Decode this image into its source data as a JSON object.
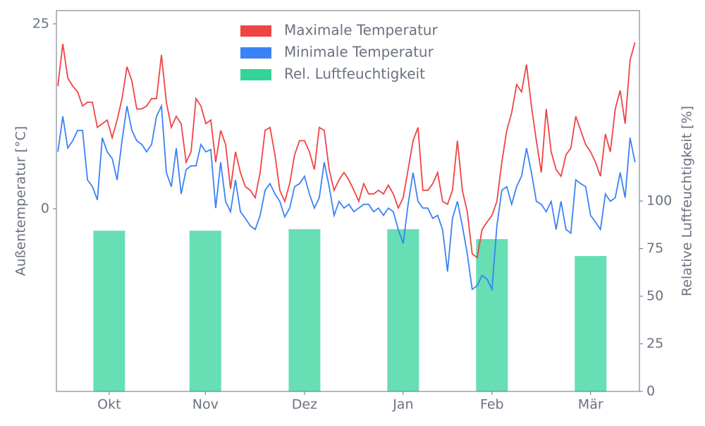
{
  "chart_data": {
    "type": "line-bar",
    "ylabel": "Außentemperatur [°C]",
    "y2label": "Relative Luftfeuchtigkeit [%]",
    "xlim": [
      -0.3,
      117.9
    ],
    "xticks": [
      {
        "value": 10.4,
        "label": "Okt"
      },
      {
        "value": 29.9,
        "label": "Nov"
      },
      {
        "value": 50,
        "label": "Dez"
      },
      {
        "value": 70,
        "label": "Jan"
      },
      {
        "value": 88,
        "label": "Feb"
      },
      {
        "value": 108,
        "label": "Mär"
      }
    ],
    "ylim": [
      -24.7,
      26.8
    ],
    "yticks": [
      0,
      25
    ],
    "y2lim": [
      0,
      200
    ],
    "y2ticks": [
      0,
      25,
      50,
      75,
      100
    ],
    "grid": false,
    "legend": "top",
    "series": [
      {
        "name": "Maximale Temperatur",
        "color": "#ef4444",
        "kind": "line",
        "values": [
          16.6,
          22.3,
          17.7,
          16.6,
          15.8,
          13.9,
          14.4,
          14.4,
          11,
          11.5,
          12,
          9.6,
          12,
          14.9,
          19.2,
          17.3,
          13.5,
          13.5,
          13.9,
          14.9,
          14.9,
          20.8,
          14.4,
          11,
          12.5,
          11.5,
          6.3,
          7.7,
          14.9,
          13.9,
          11.5,
          12,
          6.3,
          10.6,
          8.7,
          2.7,
          7.7,
          4.9,
          3,
          2.5,
          1.5,
          4.9,
          10.6,
          11,
          7.3,
          2.5,
          1,
          3.4,
          7.3,
          9.2,
          9.2,
          7.7,
          5.3,
          11,
          10.6,
          5.3,
          2.5,
          3.9,
          4.9,
          3.9,
          2.5,
          1,
          3.4,
          2,
          2,
          2.5,
          2,
          3.2,
          2,
          0.1,
          1.5,
          5.3,
          9.2,
          11,
          2.5,
          2.5,
          3.4,
          4.9,
          1,
          0.6,
          2.5,
          9.2,
          2.5,
          -0.4,
          -6.1,
          -6.6,
          -2.8,
          -1.8,
          -0.9,
          1,
          6.3,
          10.6,
          13,
          16.8,
          15.8,
          19.5,
          13.9,
          9.2,
          4.9,
          13.5,
          7.7,
          5.3,
          4.4,
          7.3,
          8.2,
          12.5,
          10.6,
          8.7,
          7.7,
          6.3,
          4.4,
          10.1,
          7.7,
          13.5,
          16,
          11.5,
          20.1,
          22.5
        ]
      },
      {
        "name": "Minimale Temperatur",
        "color": "#3b82f6",
        "kind": "line",
        "values": [
          7.7,
          12.5,
          8.2,
          9.2,
          10.6,
          10.6,
          3.9,
          3,
          1.2,
          9.6,
          7.7,
          6.8,
          3.9,
          9.2,
          13.9,
          10.6,
          9.2,
          8.7,
          7.7,
          8.7,
          12.5,
          13.9,
          4.9,
          3,
          8.2,
          2,
          5.3,
          5.8,
          5.8,
          8.7,
          7.7,
          8,
          0.1,
          6.3,
          1,
          -0.4,
          3.9,
          -0.4,
          -1.3,
          -2.3,
          -2.8,
          -0.9,
          2.5,
          3.4,
          2,
          1,
          -1.1,
          0.1,
          3,
          3.4,
          4.4,
          2,
          0.1,
          1.5,
          6.3,
          3,
          -0.9,
          1,
          0.1,
          0.6,
          -0.4,
          0.1,
          0.6,
          0.6,
          -0.4,
          0.1,
          -0.9,
          0.1,
          -0.4,
          -2.8,
          -4.7,
          0.6,
          4.9,
          1,
          0.1,
          0.1,
          -1.3,
          -0.9,
          -2.8,
          -8.5,
          -1.3,
          1,
          -2.3,
          -6.1,
          -10.9,
          -10.4,
          -9,
          -9.5,
          -10.9,
          -2.3,
          2.5,
          3,
          0.6,
          3,
          4.4,
          8.2,
          4.9,
          1,
          0.6,
          -0.4,
          1,
          -2.8,
          1,
          -2.8,
          -3.3,
          3.9,
          3.4,
          3,
          -0.9,
          -1.8,
          -2.8,
          2,
          1,
          1.5,
          4.9,
          1.5,
          9.6,
          6.3
        ]
      },
      {
        "name": "Rel. Luftfeuchtigkeit",
        "color": "#34d399",
        "kind": "bar",
        "axis": "y2",
        "values": [
          84.4,
          84.4,
          85.2,
          85.2,
          80,
          71.1
        ]
      }
    ]
  }
}
